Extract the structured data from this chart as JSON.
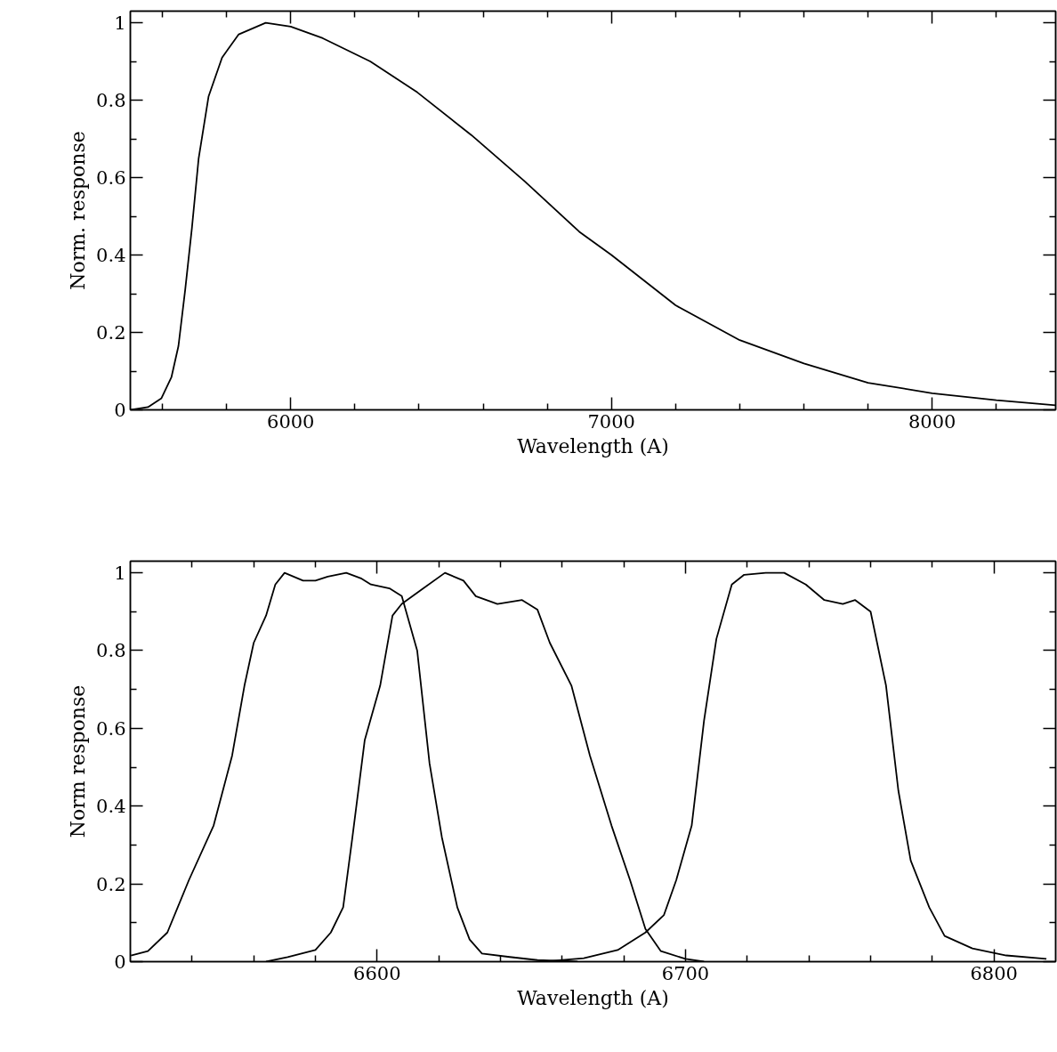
{
  "chart_data": [
    {
      "type": "line",
      "xlabel": "Wavelength (A)",
      "ylabel": "Norm. response",
      "xlim": [
        5500,
        8385
      ],
      "ylim": [
        0,
        1.03
      ],
      "grid": false,
      "line_style": "solid",
      "xticks": [
        {
          "value": 5600,
          "label": null
        },
        {
          "value": 5800,
          "label": null
        },
        6000,
        {
          "value": 6200,
          "label": null
        },
        {
          "value": 6400,
          "label": null
        },
        {
          "value": 6600,
          "label": null
        },
        {
          "value": 6800,
          "label": null
        },
        7000,
        {
          "value": 7200,
          "label": null
        },
        {
          "value": 7400,
          "label": null
        },
        {
          "value": 7600,
          "label": null
        },
        {
          "value": 7800,
          "label": null
        },
        8000,
        {
          "value": 8200,
          "label": null
        }
      ],
      "yticks": [
        0,
        {
          "value": 0.1,
          "label": null
        },
        0.2,
        {
          "value": 0.3,
          "label": null
        },
        0.4,
        {
          "value": 0.5,
          "label": null
        },
        0.6,
        {
          "value": 0.7,
          "label": null
        },
        0.8,
        {
          "value": 0.9,
          "label": null
        },
        1
      ],
      "series": [
        {
          "color": "#000000",
          "x": [
            5502,
            5555,
            5597,
            5628,
            5650,
            5671,
            5692,
            5713,
            5744,
            5786,
            5838,
            5922,
            6000,
            6100,
            6248,
            6395,
            6563,
            6730,
            6900,
            7000,
            7200,
            7400,
            7600,
            7800,
            8000,
            8200,
            8385
          ],
          "values": [
            0,
            0.007,
            0.03,
            0.084,
            0.165,
            0.31,
            0.47,
            0.65,
            0.81,
            0.91,
            0.97,
            1.0,
            0.99,
            0.96,
            0.9,
            0.82,
            0.71,
            0.59,
            0.46,
            0.4,
            0.27,
            0.18,
            0.12,
            0.07,
            0.043,
            0.025,
            0.012
          ]
        }
      ]
    },
    {
      "type": "line",
      "xlabel": "Wavelength (A)",
      "ylabel": "Norm response",
      "xlim": [
        6520,
        6820
      ],
      "ylim": [
        0,
        1.03
      ],
      "grid": false,
      "line_style": "solid",
      "xticks": [
        {
          "value": 6540,
          "label": null
        },
        {
          "value": 6560,
          "label": null
        },
        {
          "value": 6580,
          "label": null
        },
        6600,
        {
          "value": 6620,
          "label": null
        },
        {
          "value": 6640,
          "label": null
        },
        {
          "value": 6660,
          "label": null
        },
        {
          "value": 6680,
          "label": null
        },
        6700,
        {
          "value": 6720,
          "label": null
        },
        {
          "value": 6740,
          "label": null
        },
        {
          "value": 6760,
          "label": null
        },
        {
          "value": 6780,
          "label": null
        },
        6800
      ],
      "yticks": [
        0,
        {
          "value": 0.1,
          "label": null
        },
        0.2,
        {
          "value": 0.3,
          "label": null
        },
        0.4,
        {
          "value": 0.5,
          "label": null
        },
        0.6,
        {
          "value": 0.7,
          "label": null
        },
        0.8,
        {
          "value": 0.9,
          "label": null
        },
        1
      ],
      "series": [
        {
          "color": "#000000",
          "x": [
            6520.2,
            6525.7,
            6532,
            6539,
            6547,
            6553,
            6557,
            6560,
            6564,
            6567,
            6570,
            6576,
            6580,
            6584,
            6590,
            6595,
            6598,
            6604,
            6608,
            6613,
            6617,
            6621,
            6626,
            6630,
            6634,
            6643,
            6652,
            6665
          ],
          "values": [
            0.016,
            0.027,
            0.075,
            0.21,
            0.35,
            0.53,
            0.71,
            0.82,
            0.89,
            0.97,
            1.0,
            0.98,
            0.98,
            0.99,
            1.0,
            0.985,
            0.97,
            0.96,
            0.94,
            0.8,
            0.51,
            0.32,
            0.14,
            0.057,
            0.021,
            0.012,
            0.004,
            0
          ]
        },
        {
          "color": "#000000",
          "x": [
            6564,
            6571,
            6580,
            6585,
            6589,
            6592,
            6596,
            6601,
            6605,
            6608,
            6615,
            6622,
            6628,
            6632,
            6639,
            6647,
            6652,
            6656,
            6663,
            6669,
            6676,
            6682,
            6687,
            6692,
            6700,
            6706
          ],
          "values": [
            0,
            0.012,
            0.03,
            0.075,
            0.14,
            0.32,
            0.57,
            0.71,
            0.89,
            0.92,
            0.96,
            1.0,
            0.98,
            0.94,
            0.92,
            0.93,
            0.905,
            0.82,
            0.71,
            0.53,
            0.35,
            0.21,
            0.084,
            0.027,
            0.007,
            0
          ]
        },
        {
          "color": "#000000",
          "x": [
            6654,
            6667,
            6678,
            6687,
            6693,
            6697,
            6702,
            6706,
            6710,
            6715,
            6719,
            6726,
            6732,
            6739,
            6745,
            6751,
            6755,
            6760,
            6765,
            6769,
            6773,
            6779,
            6784,
            6793,
            6804,
            6817
          ],
          "values": [
            0,
            0.009,
            0.03,
            0.075,
            0.12,
            0.21,
            0.35,
            0.62,
            0.83,
            0.97,
            0.995,
            1.0,
            1.0,
            0.97,
            0.93,
            0.92,
            0.93,
            0.9,
            0.71,
            0.44,
            0.26,
            0.14,
            0.066,
            0.034,
            0.016,
            0.007
          ]
        }
      ]
    }
  ]
}
